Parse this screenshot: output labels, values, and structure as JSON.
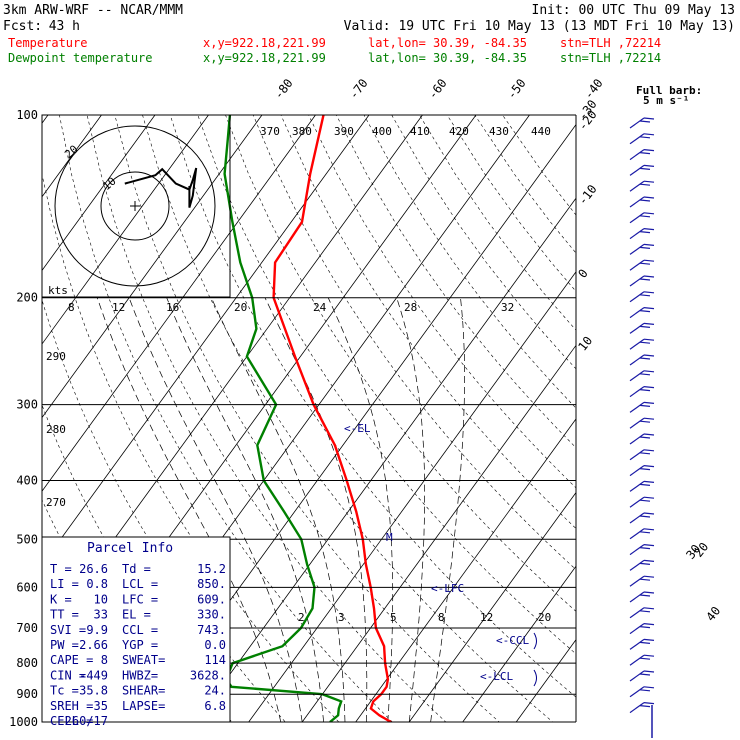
{
  "header": {
    "model": "3km ARW-WRF -- NCAR/MMM",
    "init": "Init: 00 UTC Thu 09 May 13",
    "fcst_label": "Fcst:",
    "fcst_value": "43 h",
    "valid": "Valid: 19 UTC Fri 10 May 13 (13 MDT Fri 10 May 13)",
    "temp_label": "Temperature",
    "dew_label": "Dewpoint temperature",
    "xy": "x,y=922.18,221.99",
    "latlon": "lat,lon= 30.39, -84.35",
    "stn": "stn=TLH ,72214"
  },
  "barb_note": {
    "line1": "Full barb:",
    "line2": "5 m s⁻¹"
  },
  "parcel": {
    "title": "Parcel Info",
    "rows": [
      [
        "T  =",
        "26.6",
        "Td =",
        "15.2"
      ],
      [
        "LI =",
        "0.8",
        "LCL =",
        "850."
      ],
      [
        "K  =",
        "10",
        "LFC =",
        "609."
      ],
      [
        "TT =",
        "33",
        "EL =",
        "330."
      ],
      [
        "SVI =",
        "9.9",
        "CCL =",
        "743."
      ],
      [
        "PW =",
        "2.66",
        "YGP =",
        "0.0"
      ],
      [
        "CAPE =",
        "8",
        "SWEAT=",
        "114"
      ],
      [
        "CIN =",
        "-449",
        "HWBZ=",
        "3628."
      ],
      [
        "Tc =",
        "35.8",
        "SHEAR=",
        "24."
      ],
      [
        "SREH =",
        "35",
        "LAPSE=",
        "6.8"
      ],
      [
        "CELL =",
        "260/17",
        "",
        ""
      ]
    ]
  },
  "hodograph": {
    "unit_label": "kts",
    "ring_labels": [
      "10",
      "20"
    ],
    "speed_ticks": [
      "8",
      "12",
      "16",
      "20",
      "24",
      "28",
      "32"
    ]
  },
  "chart_data": {
    "type": "line",
    "ylabel_ticks": [
      "100",
      "200",
      "300",
      "400",
      "500",
      "600",
      "700",
      "800",
      "900",
      "1000"
    ],
    "pressure_levels": [
      100,
      200,
      300,
      400,
      500,
      600,
      700,
      800,
      900,
      1000
    ],
    "temp_ticks": [
      "-80",
      "-70",
      "-60",
      "-50",
      "-40",
      "-30",
      "-20",
      "-10",
      "0",
      "10",
      "20",
      "30",
      "40"
    ],
    "theta_labels": [
      "370",
      "380",
      "390",
      "400",
      "410",
      "420",
      "430",
      "440"
    ],
    "theta_left_labels": [
      "290",
      "280",
      "270"
    ],
    "mixing_ratio_labels": [
      "2",
      "3",
      "5",
      "8",
      "12",
      "20"
    ],
    "markers": {
      "lfc": "<-LFC",
      "ccl": "<-CCL",
      "lcl": "<-LCL",
      "el": "<-EL",
      "m": "M"
    },
    "series": [
      {
        "name": "Temperature",
        "color": "#ff0000",
        "points": [
          [
            1000,
            26.6
          ],
          [
            975,
            23.5
          ],
          [
            950,
            21.0
          ],
          [
            925,
            20.5
          ],
          [
            900,
            21.0
          ],
          [
            875,
            21.0
          ],
          [
            850,
            20.2
          ],
          [
            800,
            17.5
          ],
          [
            750,
            15.0
          ],
          [
            700,
            11.0
          ],
          [
            650,
            8.0
          ],
          [
            600,
            4.5
          ],
          [
            550,
            0.5
          ],
          [
            500,
            -3.5
          ],
          [
            450,
            -8.5
          ],
          [
            400,
            -14.5
          ],
          [
            350,
            -21.5
          ],
          [
            300,
            -31.0
          ],
          [
            250,
            -41.0
          ],
          [
            200,
            -53.0
          ],
          [
            175,
            -57.5
          ],
          [
            150,
            -58.0
          ],
          [
            125,
            -63.0
          ],
          [
            100,
            -68.5
          ]
        ]
      },
      {
        "name": "Dewpoint temperature",
        "color": "#008000",
        "points": [
          [
            1000,
            15.2
          ],
          [
            975,
            15.8
          ],
          [
            950,
            15.0
          ],
          [
            925,
            14.5
          ],
          [
            900,
            10.0
          ],
          [
            875,
            -8.0
          ],
          [
            850,
            -10.0
          ],
          [
            800,
            -11.0
          ],
          [
            750,
            -4.0
          ],
          [
            700,
            -3.0
          ],
          [
            650,
            -3.5
          ],
          [
            600,
            -6.0
          ],
          [
            550,
            -10.5
          ],
          [
            500,
            -15.0
          ],
          [
            450,
            -22.0
          ],
          [
            400,
            -30.0
          ],
          [
            350,
            -36.0
          ],
          [
            300,
            -38.0
          ],
          [
            250,
            -50.0
          ],
          [
            225,
            -52.0
          ],
          [
            200,
            -57.0
          ],
          [
            175,
            -64.0
          ],
          [
            150,
            -71.0
          ],
          [
            125,
            -79.0
          ],
          [
            110,
            -83.0
          ],
          [
            100,
            -86.0
          ]
        ]
      }
    ],
    "hodo_trace": [
      [
        -3,
        0.2
      ],
      [
        6,
        0.9
      ],
      [
        8,
        1.4
      ],
      [
        12,
        0.2
      ],
      [
        16,
        -0.3
      ],
      [
        17,
        0.5
      ],
      [
        18,
        1.5
      ],
      [
        17,
        -0.8
      ],
      [
        16,
        -1.8
      ],
      [
        16,
        0.0
      ]
    ]
  }
}
